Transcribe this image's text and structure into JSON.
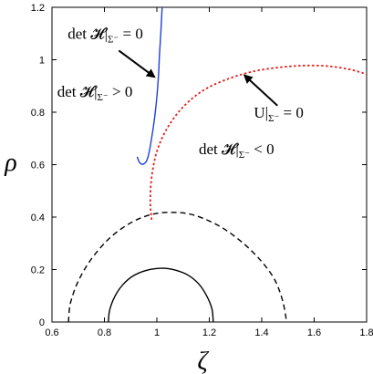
{
  "chart_data": {
    "type": "line",
    "xlabel": "ζ",
    "ylabel": "ρ",
    "xlim": [
      0.6,
      1.8
    ],
    "ylim": [
      0,
      1.2
    ],
    "x_ticks": [
      "0.6",
      "0.8",
      "1",
      "1.2",
      "1.4",
      "1.6",
      "1.8"
    ],
    "y_ticks": [
      "0",
      "0.2",
      "0.4",
      "0.6",
      "0.8",
      "1",
      "1.2"
    ],
    "grid": false,
    "series": [
      {
        "style": "solid",
        "color": "#000000",
        "points": [
          [
            0.815,
            0
          ],
          [
            0.82,
            0.045
          ],
          [
            0.84,
            0.098
          ],
          [
            0.87,
            0.142
          ],
          [
            0.91,
            0.176
          ],
          [
            0.96,
            0.197
          ],
          [
            1.02,
            0.205
          ],
          [
            1.07,
            0.198
          ],
          [
            1.12,
            0.178
          ],
          [
            1.16,
            0.145
          ],
          [
            1.19,
            0.1
          ],
          [
            1.21,
            0.05
          ],
          [
            1.215,
            0
          ]
        ]
      },
      {
        "style": "dashed",
        "color": "#000000",
        "points": [
          [
            0.663,
            0
          ],
          [
            0.67,
            0.07
          ],
          [
            0.7,
            0.155
          ],
          [
            0.75,
            0.24
          ],
          [
            0.82,
            0.32
          ],
          [
            0.9,
            0.378
          ],
          [
            0.98,
            0.41
          ],
          [
            1.06,
            0.418
          ],
          [
            1.14,
            0.408
          ],
          [
            1.24,
            0.365
          ],
          [
            1.33,
            0.3
          ],
          [
            1.4,
            0.23
          ],
          [
            1.45,
            0.16
          ],
          [
            1.48,
            0.08
          ],
          [
            1.495,
            0
          ]
        ]
      },
      {
        "style": "solid",
        "color": "#1f3fd6",
        "points": [
          [
            0.925,
            0.63
          ],
          [
            0.935,
            0.607
          ],
          [
            0.95,
            0.603
          ],
          [
            0.965,
            0.625
          ],
          [
            0.98,
            0.7
          ],
          [
            0.995,
            0.81
          ],
          [
            1.005,
            0.92
          ],
          [
            1.01,
            1.02
          ],
          [
            1.015,
            1.1
          ],
          [
            1.02,
            1.2
          ]
        ]
      },
      {
        "style": "dotted",
        "color": "#e0201c",
        "points": [
          [
            0.98,
            0.39
          ],
          [
            0.975,
            0.46
          ],
          [
            0.98,
            0.55
          ],
          [
            1.0,
            0.65
          ],
          [
            1.04,
            0.74
          ],
          [
            1.1,
            0.82
          ],
          [
            1.18,
            0.885
          ],
          [
            1.28,
            0.93
          ],
          [
            1.38,
            0.958
          ],
          [
            1.48,
            0.972
          ],
          [
            1.57,
            0.978
          ],
          [
            1.66,
            0.975
          ],
          [
            1.74,
            0.962
          ],
          [
            1.8,
            0.945
          ]
        ]
      }
    ],
    "annotations": [
      {
        "text_main": "det 𝓗|",
        "text_sub": "Σ⁻",
        "text_rel": "= 0",
        "x": 0.66,
        "y": 1.08
      },
      {
        "text_main": "det 𝓗|",
        "text_sub": "Σ⁻",
        "text_rel": "> 0",
        "x": 0.62,
        "y": 0.86
      },
      {
        "text_main": "U|",
        "text_sub": "Σ⁻",
        "text_rel": "= 0",
        "x": 1.37,
        "y": 0.78
      },
      {
        "text_main": "det 𝓗|",
        "text_sub": "Σ⁻",
        "text_rel": "< 0",
        "x": 1.16,
        "y": 0.64
      }
    ],
    "arrows": [
      {
        "from": [
          0.855,
          1.035
        ],
        "to": [
          0.99,
          0.935
        ]
      },
      {
        "from": [
          1.46,
          0.825
        ],
        "to": [
          1.335,
          0.94
        ]
      }
    ]
  }
}
